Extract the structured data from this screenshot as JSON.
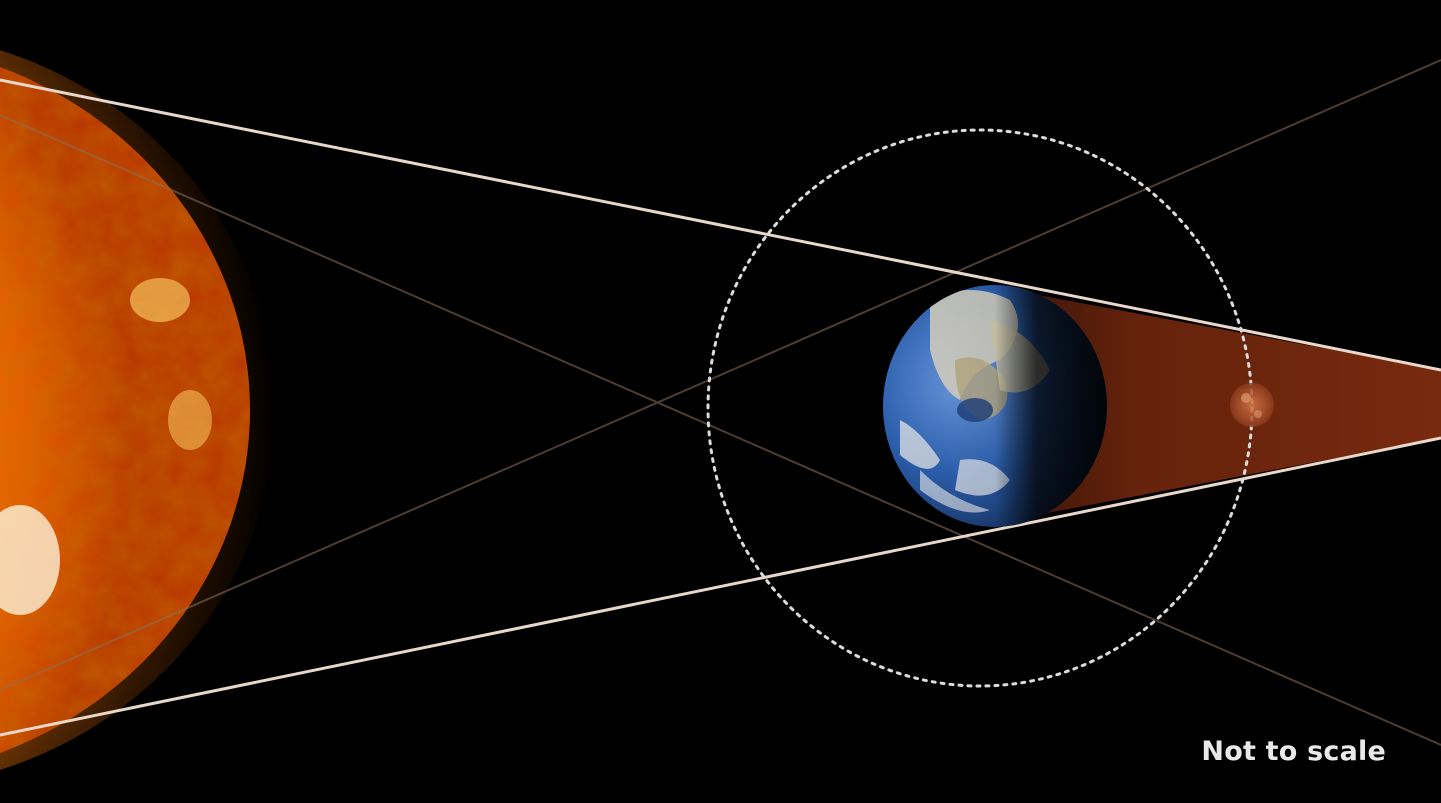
{
  "diagram": {
    "note": "Not to scale",
    "colors": {
      "background": "#000000",
      "sun_core": "#fff4b0",
      "sun_mid": "#ff9b10",
      "sun_edge": "#c23c00",
      "umbra": "#7a2a10",
      "orbit": "#d8d8d8",
      "tangent_lines": "#e8d6c8",
      "earth_ocean": "#2f62b0",
      "moon": "#c0633a"
    },
    "elements": [
      "sun",
      "earth",
      "moon",
      "moon-orbit",
      "umbra-shadow",
      "tangent-lines"
    ]
  }
}
